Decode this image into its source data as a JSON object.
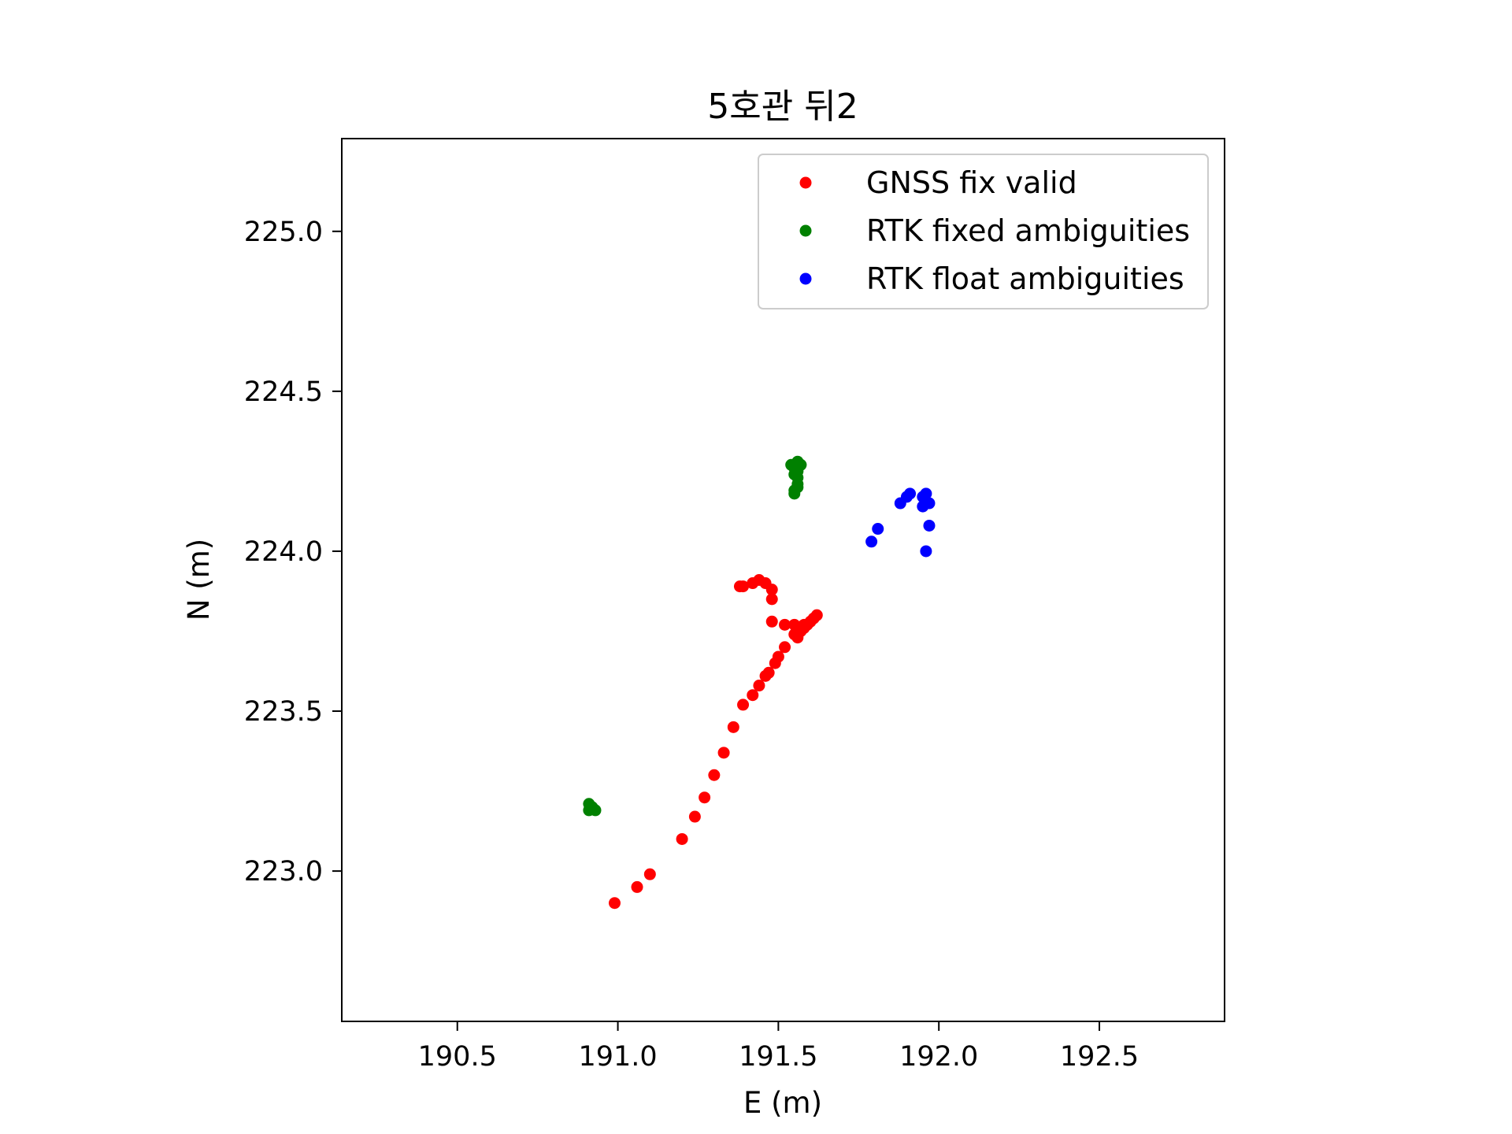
{
  "chart_data": {
    "type": "scatter",
    "title": "5호관 뒤2",
    "xlabel": "E (m)",
    "ylabel": "N (m)",
    "xlim": [
      190.14,
      192.89
    ],
    "ylim": [
      222.53,
      225.29
    ],
    "xticks": [
      190.5,
      191.0,
      191.5,
      192.0,
      192.5
    ],
    "xtick_labels": [
      "190.5",
      "191.0",
      "191.5",
      "192.0",
      "192.5"
    ],
    "yticks": [
      223.0,
      223.5,
      224.0,
      224.5,
      225.0
    ],
    "ytick_labels": [
      "223.0",
      "223.5",
      "224.0",
      "224.5",
      "225.0"
    ],
    "grid": false,
    "legend_position": "top-right",
    "series": [
      {
        "name": "GNSS fix valid",
        "color": "#ff0000",
        "points": [
          [
            190.99,
            222.9
          ],
          [
            191.06,
            222.95
          ],
          [
            191.1,
            222.99
          ],
          [
            191.2,
            223.1
          ],
          [
            191.24,
            223.17
          ],
          [
            191.27,
            223.23
          ],
          [
            191.3,
            223.3
          ],
          [
            191.33,
            223.37
          ],
          [
            191.36,
            223.45
          ],
          [
            191.39,
            223.52
          ],
          [
            191.42,
            223.55
          ],
          [
            191.44,
            223.58
          ],
          [
            191.46,
            223.61
          ],
          [
            191.47,
            223.62
          ],
          [
            191.49,
            223.65
          ],
          [
            191.5,
            223.67
          ],
          [
            191.52,
            223.7
          ],
          [
            191.55,
            223.74
          ],
          [
            191.56,
            223.73
          ],
          [
            191.57,
            223.75
          ],
          [
            191.58,
            223.76
          ],
          [
            191.59,
            223.77
          ],
          [
            191.6,
            223.78
          ],
          [
            191.61,
            223.79
          ],
          [
            191.62,
            223.8
          ],
          [
            191.58,
            223.77
          ],
          [
            191.55,
            223.77
          ],
          [
            191.52,
            223.77
          ],
          [
            191.48,
            223.78
          ],
          [
            191.48,
            223.85
          ],
          [
            191.48,
            223.88
          ],
          [
            191.46,
            223.9
          ],
          [
            191.44,
            223.91
          ],
          [
            191.42,
            223.9
          ],
          [
            191.39,
            223.89
          ],
          [
            191.38,
            223.89
          ]
        ]
      },
      {
        "name": "RTK fixed ambiguities",
        "color": "#008000",
        "points": [
          [
            190.91,
            223.21
          ],
          [
            190.91,
            223.19
          ],
          [
            190.92,
            223.2
          ],
          [
            190.93,
            223.19
          ],
          [
            191.54,
            224.27
          ],
          [
            191.55,
            224.26
          ],
          [
            191.56,
            224.28
          ],
          [
            191.57,
            224.27
          ],
          [
            191.55,
            224.24
          ],
          [
            191.56,
            224.23
          ],
          [
            191.56,
            224.21
          ],
          [
            191.56,
            224.2
          ],
          [
            191.55,
            224.19
          ],
          [
            191.55,
            224.18
          ],
          [
            191.56,
            224.25
          ]
        ]
      },
      {
        "name": "RTK float ambiguities",
        "color": "#0000ff",
        "points": [
          [
            191.79,
            224.03
          ],
          [
            191.81,
            224.07
          ],
          [
            191.88,
            224.15
          ],
          [
            191.9,
            224.17
          ],
          [
            191.91,
            224.18
          ],
          [
            191.95,
            224.14
          ],
          [
            191.95,
            224.17
          ],
          [
            191.96,
            224.18
          ],
          [
            191.97,
            224.15
          ],
          [
            191.97,
            224.08
          ],
          [
            191.96,
            224.0
          ]
        ]
      }
    ]
  }
}
